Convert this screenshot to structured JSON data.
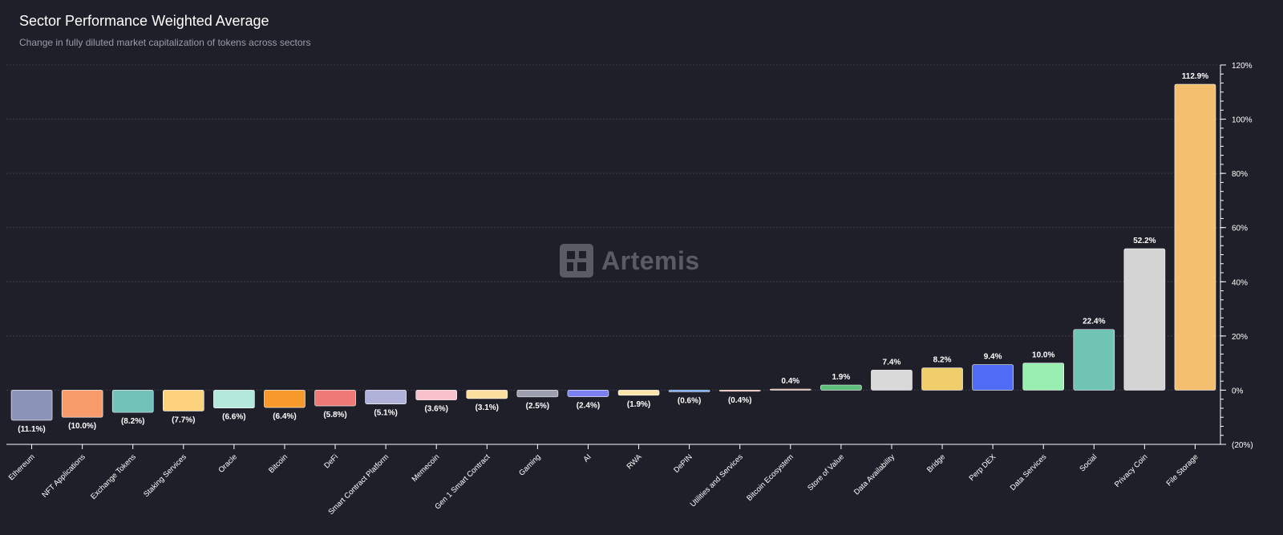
{
  "header": {
    "title": "Sector Performance Weighted Average",
    "subtitle": "Change in fully diluted market capitalization of tokens across sectors"
  },
  "watermark": {
    "brand": "Artemis",
    "icon": "artemis-logo-icon"
  },
  "chart_data": {
    "type": "bar",
    "title": "Sector Performance Weighted Average",
    "subtitle": "Change in fully diluted market capitalization of tokens across sectors",
    "xlabel": "",
    "ylabel": "",
    "ylim": [
      -20,
      120
    ],
    "yticks": [
      -20,
      0,
      20,
      40,
      60,
      80,
      100,
      120
    ],
    "ytick_labels": [
      "(20%)",
      "0%",
      "20%",
      "40%",
      "60%",
      "80%",
      "100%",
      "120%"
    ],
    "y_axis_position": "right",
    "grid": "horizontal-dashed",
    "categories": [
      "Ethereum",
      "NFT Applications",
      "Exchange Tokens",
      "Staking Services",
      "Oracle",
      "Bitcoin",
      "DeFi",
      "Smart Contract Platform",
      "Memecoin",
      "Gen 1 Smart Contract",
      "Gaming",
      "AI",
      "RWA",
      "DePIN",
      "Utilities and Services",
      "Bitcoin Ecosystem",
      "Store of Value",
      "Data Availability",
      "Bridge",
      "Perp DEX",
      "Data Services",
      "Social",
      "Privacy Coin",
      "File Storage"
    ],
    "values": [
      -11.1,
      -10.0,
      -8.2,
      -7.7,
      -6.6,
      -6.4,
      -5.8,
      -5.1,
      -3.6,
      -3.1,
      -2.5,
      -2.4,
      -1.9,
      -0.6,
      -0.4,
      0.4,
      1.9,
      7.4,
      8.2,
      9.4,
      10.0,
      22.4,
      52.2,
      112.9
    ],
    "data_labels": [
      "(11.1%)",
      "(10.0%)",
      "(8.2%)",
      "(7.7%)",
      "(6.6%)",
      "(6.4%)",
      "(5.8%)",
      "(5.1%)",
      "(3.6%)",
      "(3.1%)",
      "(2.5%)",
      "(2.4%)",
      "(1.9%)",
      "(0.6%)",
      "(0.4%)",
      "0.4%",
      "1.9%",
      "7.4%",
      "8.2%",
      "9.4%",
      "10.0%",
      "22.4%",
      "52.2%",
      "112.9%"
    ],
    "colors": [
      "#8b93b8",
      "#f79b6a",
      "#72c2b9",
      "#fdd27d",
      "#b4e8dc",
      "#f79a2c",
      "#ef7976",
      "#b0b1d8",
      "#f8c1cb",
      "#fde0a0",
      "#9b9fae",
      "#7b80f0",
      "#fbe5a8",
      "#4d8fe8",
      "#e08a7a",
      "#e8a070",
      "#5cc07a",
      "#d9d9d9",
      "#f0cf6a",
      "#4e6cf5",
      "#98efb0",
      "#6fc4b4",
      "#d4d4d4",
      "#f4bf6e"
    ]
  }
}
